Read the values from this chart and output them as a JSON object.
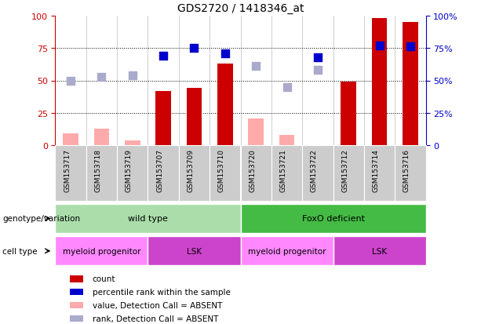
{
  "title": "GDS2720 / 1418346_at",
  "samples": [
    "GSM153717",
    "GSM153718",
    "GSM153719",
    "GSM153707",
    "GSM153709",
    "GSM153710",
    "GSM153720",
    "GSM153721",
    "GSM153722",
    "GSM153712",
    "GSM153714",
    "GSM153716"
  ],
  "count_values": [
    null,
    null,
    null,
    42,
    44,
    63,
    null,
    null,
    null,
    49,
    98,
    95
  ],
  "count_absent": [
    9,
    13,
    4,
    null,
    null,
    null,
    21,
    8,
    null,
    null,
    null,
    null
  ],
  "percentile_rank": [
    null,
    null,
    null,
    69,
    75,
    71,
    null,
    null,
    68,
    null,
    77,
    76
  ],
  "rank_absent": [
    50,
    53,
    54,
    null,
    null,
    null,
    61,
    45,
    58,
    null,
    null,
    null
  ],
  "ylim": [
    0,
    100
  ],
  "grid_lines": [
    25,
    50,
    75
  ],
  "count_color": "#cc0000",
  "count_absent_color": "#ffaaaa",
  "percentile_color": "#0000cc",
  "rank_absent_color": "#aaaacc",
  "bar_width": 0.5,
  "scatter_size": 45,
  "genotype_groups": [
    {
      "label": "wild type",
      "start": 0,
      "end": 6,
      "color": "#aaddaa"
    },
    {
      "label": "FoxO deficient",
      "start": 6,
      "end": 12,
      "color": "#44bb44"
    }
  ],
  "celltype_groups": [
    {
      "label": "myeloid progenitor",
      "start": 0,
      "end": 3,
      "color": "#ff88ff"
    },
    {
      "label": "LSK",
      "start": 3,
      "end": 6,
      "color": "#cc44cc"
    },
    {
      "label": "myeloid progenitor",
      "start": 6,
      "end": 9,
      "color": "#ff88ff"
    },
    {
      "label": "LSK",
      "start": 9,
      "end": 12,
      "color": "#cc44cc"
    }
  ],
  "background_color": "#ffffff",
  "left_axis_color": "#cc0000",
  "right_axis_color": "#0000cc",
  "tick_bg_color": "#cccccc",
  "legend_items": [
    {
      "label": "count",
      "color": "#cc0000"
    },
    {
      "label": "percentile rank within the sample",
      "color": "#0000cc"
    },
    {
      "label": "value, Detection Call = ABSENT",
      "color": "#ffaaaa"
    },
    {
      "label": "rank, Detection Call = ABSENT",
      "color": "#aaaacc"
    }
  ]
}
